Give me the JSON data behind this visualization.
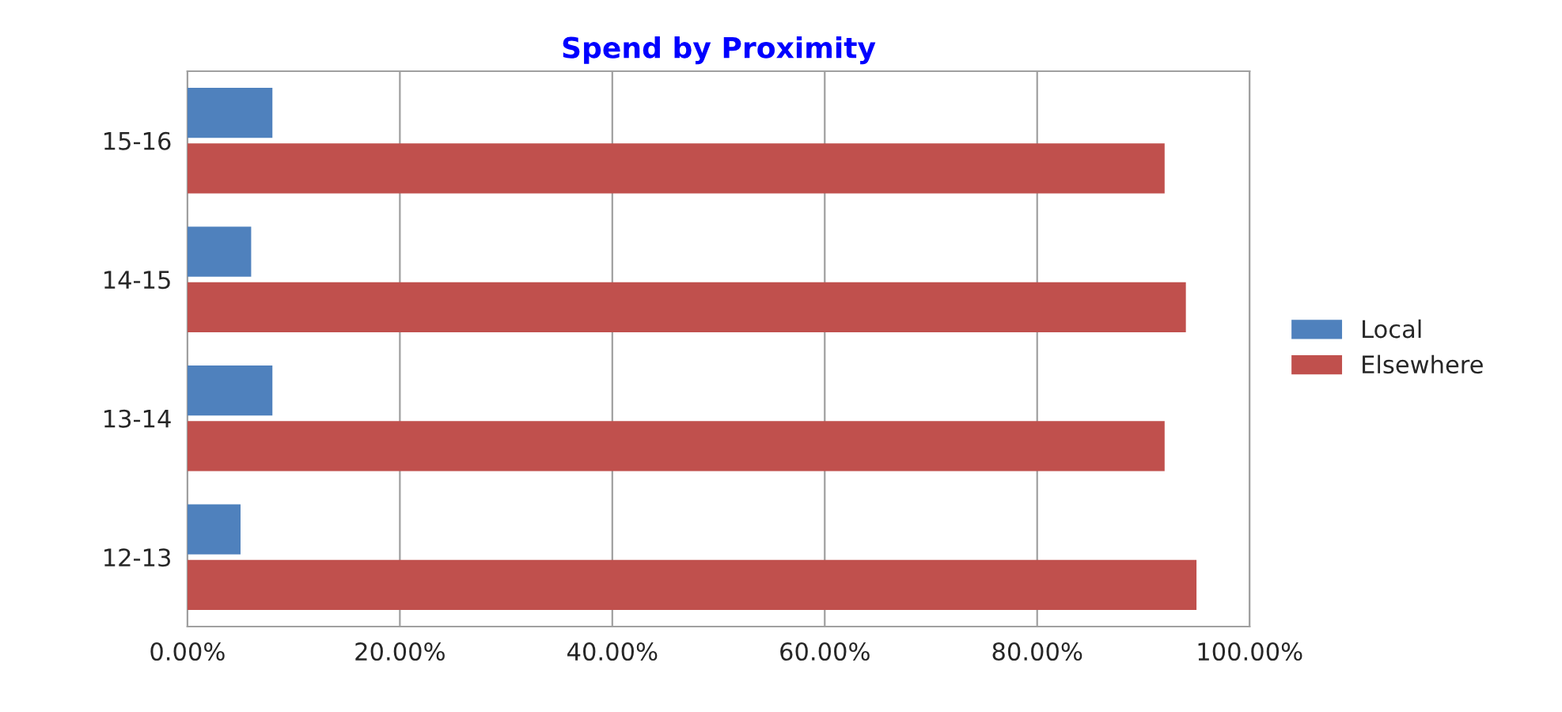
{
  "chart_data": {
    "type": "bar",
    "orientation": "horizontal",
    "title": "Spend by Proximity",
    "categories": [
      "15-16",
      "14-15",
      "13-14",
      "12-13"
    ],
    "series": [
      {
        "name": "Local",
        "color": "#4f81bd",
        "values": [
          8,
          6,
          8,
          5
        ]
      },
      {
        "name": "Elsewhere",
        "color": "#c0504d",
        "values": [
          92,
          94,
          92,
          95
        ]
      }
    ],
    "xlim": [
      0,
      100
    ],
    "xticks": [
      {
        "value": 0,
        "label": "0.00%"
      },
      {
        "value": 20,
        "label": "20.00%"
      },
      {
        "value": 40,
        "label": "40.00%"
      },
      {
        "value": 60,
        "label": "60.00%"
      },
      {
        "value": 80,
        "label": "80.00%"
      },
      {
        "value": 100,
        "label": "100.00%"
      }
    ],
    "grid": "x",
    "legend": "right"
  }
}
